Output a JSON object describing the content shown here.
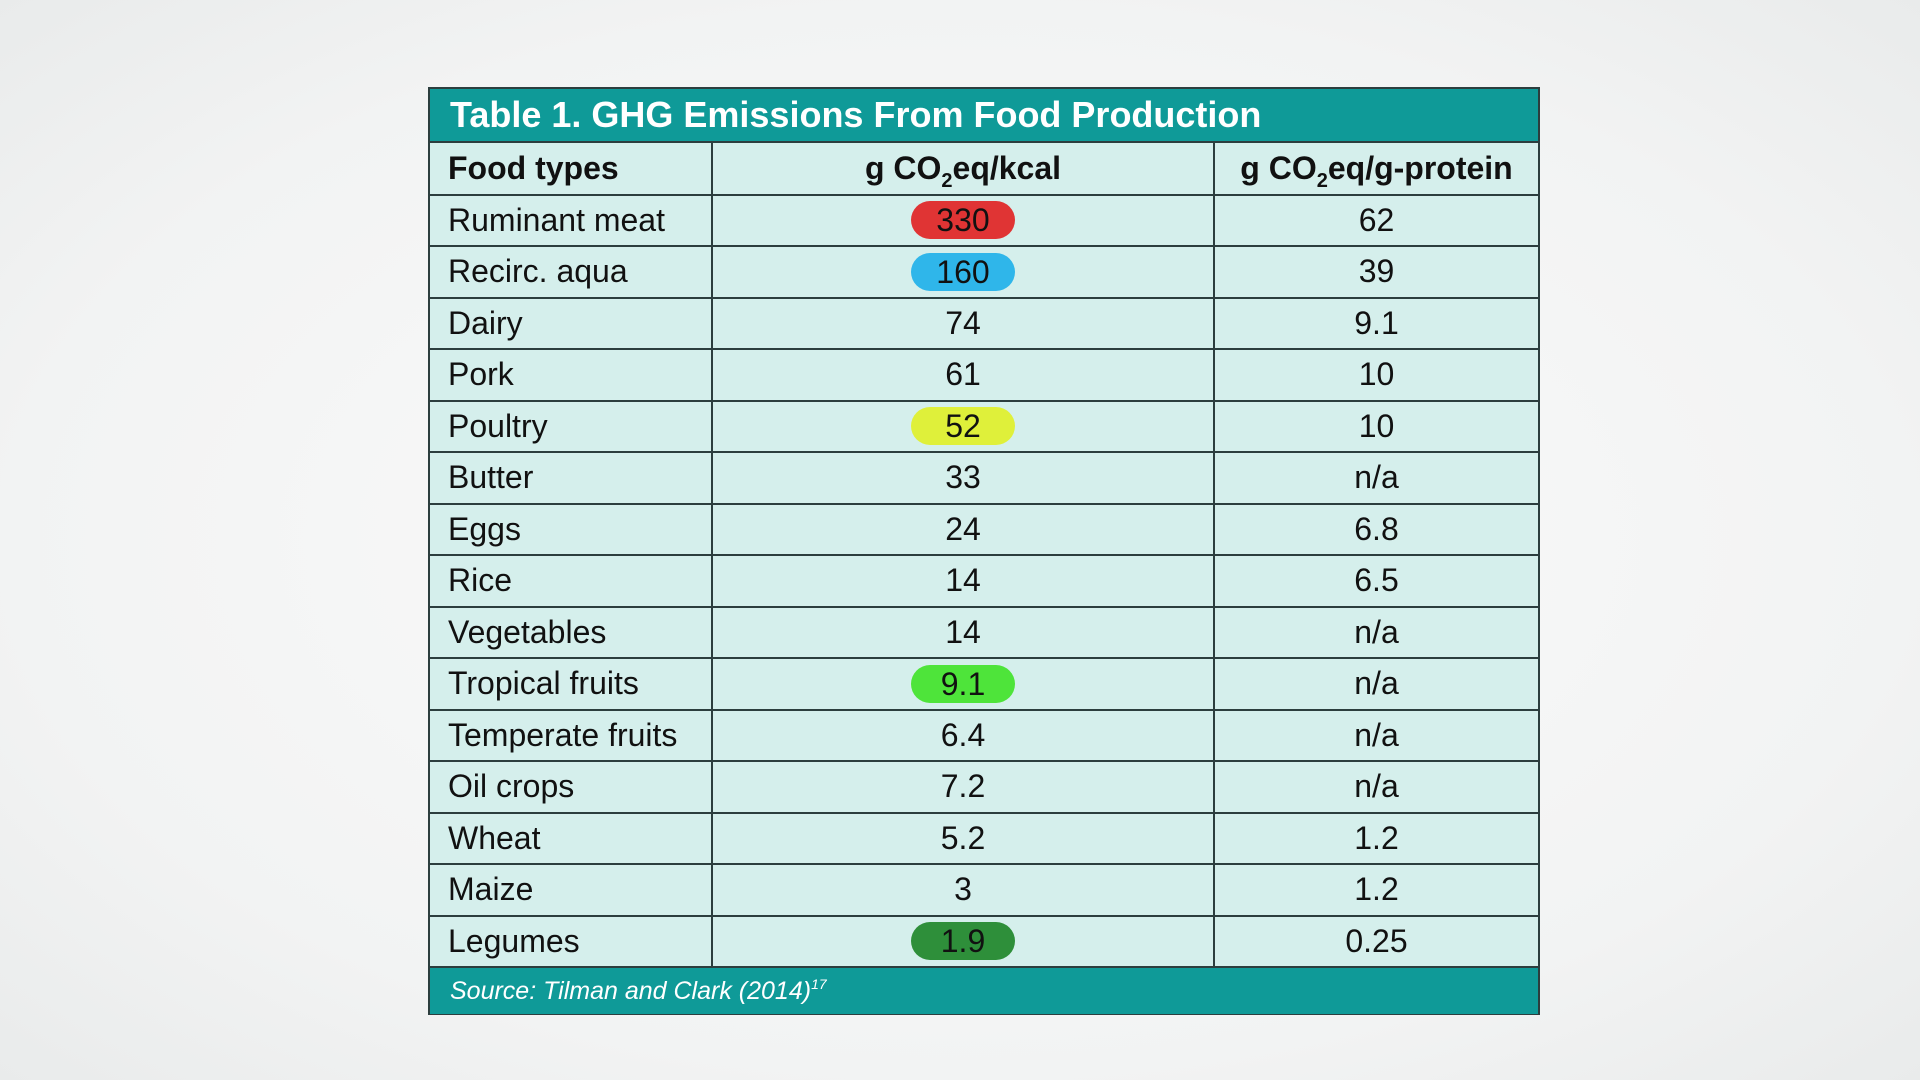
{
  "title": "Table 1.  GHG Emissions From Food Production",
  "headers": {
    "col1": "Food types",
    "col2_prefix": "g CO",
    "col2_sub": "2",
    "col2_suffix": "eq/kcal",
    "col3_prefix": "g CO",
    "col3_sub": "2",
    "col3_suffix": "eq/g-protein"
  },
  "rows": [
    {
      "food": "Ruminant meat",
      "kcal": "330",
      "protein": "62",
      "highlight": "#e03434"
    },
    {
      "food": "Recirc. aqua",
      "kcal": "160",
      "protein": "39",
      "highlight": "#2fb6ea"
    },
    {
      "food": "Dairy",
      "kcal": "74",
      "protein": "9.1",
      "highlight": null
    },
    {
      "food": "Pork",
      "kcal": "61",
      "protein": "10",
      "highlight": null
    },
    {
      "food": "Poultry",
      "kcal": "52",
      "protein": "10",
      "highlight": "#dff03a"
    },
    {
      "food": "Butter",
      "kcal": "33",
      "protein": "n/a",
      "highlight": null
    },
    {
      "food": "Eggs",
      "kcal": "24",
      "protein": "6.8",
      "highlight": null
    },
    {
      "food": "Rice",
      "kcal": "14",
      "protein": "6.5",
      "highlight": null
    },
    {
      "food": "Vegetables",
      "kcal": "14",
      "protein": "n/a",
      "highlight": null
    },
    {
      "food": "Tropical fruits",
      "kcal": "9.1",
      "protein": "n/a",
      "highlight": "#4ee43a"
    },
    {
      "food": "Temperate fruits",
      "kcal": "6.4",
      "protein": "n/a",
      "highlight": null
    },
    {
      "food": "Oil crops",
      "kcal": "7.2",
      "protein": "n/a",
      "highlight": null
    },
    {
      "food": "Wheat",
      "kcal": "5.2",
      "protein": "1.2",
      "highlight": null
    },
    {
      "food": "Maize",
      "kcal": "3",
      "protein": "1.2",
      "highlight": null
    },
    {
      "food": "Legumes",
      "kcal": "1.9",
      "protein": "0.25",
      "highlight": "#2e8f3a"
    }
  ],
  "footer": {
    "source": "Source: Tilman and Clark (2014)",
    "footnote": "17"
  }
}
